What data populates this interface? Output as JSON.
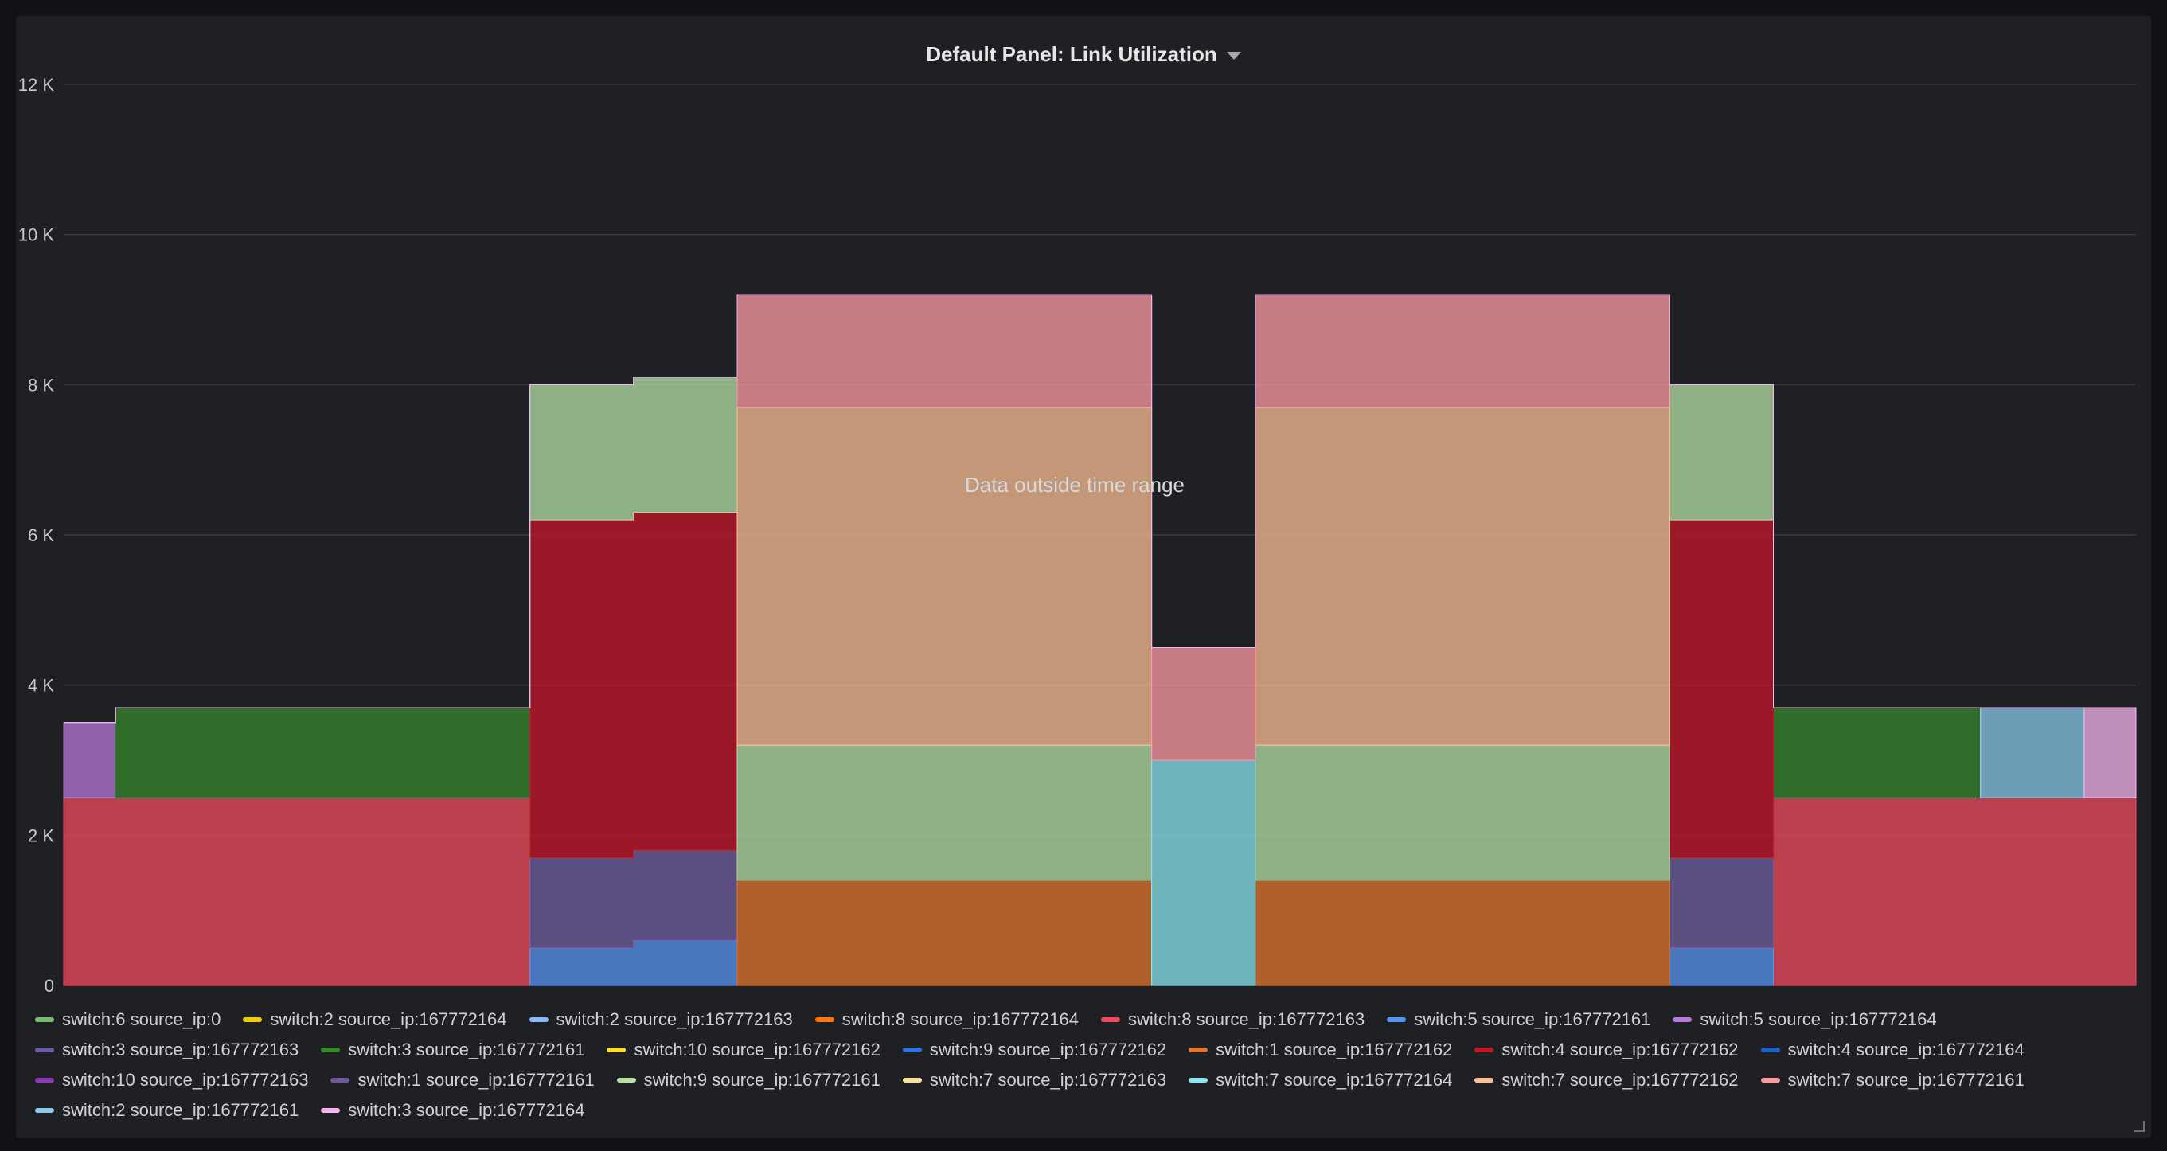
{
  "panel": {
    "title": "Default Panel: Link Utilization",
    "caret_icon": "chevron-down-icon"
  },
  "chart_data": {
    "type": "area",
    "stacked": true,
    "title": "Default Panel: Link Utilization",
    "xlabel": "",
    "ylabel": "",
    "ylim": [
      0,
      12000
    ],
    "y_ticks": [
      0,
      2000,
      4000,
      6000,
      8000,
      10000,
      12000
    ],
    "y_tick_labels": [
      "0",
      "2 K",
      "4 K",
      "6 K",
      "8 K",
      "10 K",
      "12 K"
    ],
    "grid": true,
    "legend_position": "bottom",
    "annotation": "Data outside time range",
    "x": [
      0,
      1,
      2,
      3,
      4,
      5,
      6,
      7,
      8,
      9,
      10,
      11,
      12,
      13,
      14,
      15,
      16,
      17,
      18,
      19,
      20
    ],
    "series": [
      {
        "name": "switch:6 source_ip:0",
        "color": "#73bf69",
        "values": [
          0,
          0,
          0,
          0,
          0,
          0,
          0,
          0,
          0,
          0,
          0,
          0,
          0,
          0,
          0,
          0,
          0,
          0,
          0,
          0,
          0
        ]
      },
      {
        "name": "switch:2 source_ip:167772164",
        "color": "#f2cc0c",
        "values": [
          0,
          0,
          0,
          0,
          0,
          0,
          0,
          0,
          0,
          0,
          0,
          0,
          0,
          0,
          0,
          0,
          0,
          0,
          0,
          0,
          0
        ]
      },
      {
        "name": "switch:2 source_ip:167772163",
        "color": "#8ab8ff",
        "values": [
          0,
          0,
          0,
          0,
          0,
          0,
          0,
          0,
          0,
          0,
          0,
          0,
          0,
          0,
          0,
          0,
          0,
          0,
          0,
          0,
          0
        ]
      },
      {
        "name": "switch:8 source_ip:167772164",
        "color": "#ff780a",
        "values": [
          0,
          0,
          0,
          0,
          0,
          0,
          0,
          0,
          0,
          0,
          0,
          0,
          0,
          0,
          0,
          0,
          0,
          0,
          0,
          0,
          0
        ]
      },
      {
        "name": "switch:8 source_ip:167772163",
        "color": "#f2495c",
        "values": [
          2500,
          2500,
          2500,
          2500,
          2500,
          0,
          0,
          0,
          0,
          0,
          0,
          0,
          0,
          0,
          0,
          0,
          0,
          2500,
          2500,
          2500,
          2500
        ]
      },
      {
        "name": "switch:5 source_ip:167772161",
        "color": "#5794f2",
        "values": [
          0,
          0,
          0,
          0,
          0,
          500,
          600,
          0,
          0,
          0,
          0,
          0,
          0,
          0,
          0,
          0,
          500,
          0,
          0,
          0,
          0
        ]
      },
      {
        "name": "switch:5 source_ip:167772164",
        "color": "#b877d9",
        "values": [
          1000,
          0,
          0,
          0,
          0,
          0,
          0,
          0,
          0,
          0,
          0,
          0,
          0,
          0,
          0,
          0,
          0,
          0,
          0,
          0,
          0
        ]
      },
      {
        "name": "switch:3 source_ip:167772163",
        "color": "#705da0",
        "values": [
          0,
          0,
          0,
          0,
          0,
          1200,
          1200,
          0,
          0,
          0,
          0,
          0,
          0,
          0,
          0,
          0,
          1200,
          0,
          0,
          0,
          0
        ]
      },
      {
        "name": "switch:3 source_ip:167772161",
        "color": "#37872d",
        "values": [
          0,
          1200,
          1200,
          1200,
          1200,
          0,
          0,
          0,
          0,
          0,
          0,
          0,
          0,
          0,
          0,
          0,
          0,
          1200,
          1200,
          0,
          0
        ]
      },
      {
        "name": "switch:10 source_ip:167772162",
        "color": "#fade2a",
        "values": [
          0,
          0,
          0,
          0,
          0,
          0,
          0,
          0,
          0,
          0,
          0,
          0,
          0,
          0,
          0,
          0,
          0,
          0,
          0,
          0,
          0
        ]
      },
      {
        "name": "switch:9 source_ip:167772162",
        "color": "#3274d9",
        "values": [
          0,
          0,
          0,
          0,
          0,
          0,
          0,
          0,
          0,
          0,
          0,
          0,
          0,
          0,
          0,
          0,
          0,
          0,
          0,
          0,
          0
        ]
      },
      {
        "name": "switch:1 source_ip:167772162",
        "color": "#e0752d",
        "values": [
          0,
          0,
          0,
          0,
          0,
          0,
          0,
          1400,
          1400,
          1400,
          1400,
          0,
          1400,
          1400,
          1400,
          1400,
          0,
          0,
          0,
          0,
          0
        ]
      },
      {
        "name": "switch:4 source_ip:167772162",
        "color": "#c4162a",
        "values": [
          0,
          0,
          0,
          0,
          0,
          4500,
          4500,
          0,
          0,
          0,
          0,
          0,
          0,
          0,
          0,
          0,
          4500,
          0,
          0,
          0,
          0
        ]
      },
      {
        "name": "switch:4 source_ip:167772164",
        "color": "#1f60c4",
        "values": [
          0,
          0,
          0,
          0,
          0,
          0,
          0,
          0,
          0,
          0,
          0,
          0,
          0,
          0,
          0,
          0,
          0,
          0,
          0,
          0,
          0
        ]
      },
      {
        "name": "switch:10 source_ip:167772163",
        "color": "#8f3bb8",
        "values": [
          0,
          0,
          0,
          0,
          0,
          0,
          0,
          0,
          0,
          0,
          0,
          0,
          0,
          0,
          0,
          0,
          0,
          0,
          0,
          0,
          0
        ]
      },
      {
        "name": "switch:1 source_ip:167772161",
        "color": "#6e5a9a",
        "values": [
          0,
          0,
          0,
          0,
          0,
          0,
          0,
          0,
          0,
          0,
          0,
          0,
          0,
          0,
          0,
          0,
          0,
          0,
          0,
          0,
          0
        ]
      },
      {
        "name": "switch:9 source_ip:167772161",
        "color": "#b6dfa6",
        "values": [
          0,
          0,
          0,
          0,
          0,
          1800,
          1800,
          1800,
          1800,
          1800,
          1800,
          0,
          1800,
          1800,
          1800,
          1800,
          1800,
          0,
          0,
          0,
          0
        ]
      },
      {
        "name": "switch:7 source_ip:167772163",
        "color": "#fce2a0",
        "values": [
          0,
          0,
          0,
          0,
          0,
          0,
          0,
          0,
          0,
          0,
          0,
          0,
          0,
          0,
          0,
          0,
          0,
          0,
          0,
          0,
          0
        ]
      },
      {
        "name": "switch:7 source_ip:167772164",
        "color": "#8ae6f0",
        "values": [
          0,
          0,
          0,
          0,
          0,
          0,
          0,
          0,
          0,
          0,
          0,
          3000,
          0,
          0,
          0,
          0,
          0,
          0,
          0,
          0,
          0
        ]
      },
      {
        "name": "switch:7 source_ip:167772162",
        "color": "#fcbf96",
        "values": [
          0,
          0,
          0,
          0,
          0,
          0,
          0,
          4500,
          4500,
          4500,
          4500,
          0,
          4500,
          4500,
          4500,
          4500,
          0,
          0,
          0,
          0,
          0
        ]
      },
      {
        "name": "switch:7 source_ip:167772161",
        "color": "#ff9aa5",
        "values": [
          0,
          0,
          0,
          0,
          0,
          0,
          0,
          1500,
          1500,
          1500,
          1500,
          1500,
          1500,
          1500,
          1500,
          1500,
          0,
          0,
          0,
          0,
          0
        ]
      },
      {
        "name": "switch:2 source_ip:167772161",
        "color": "#8ac7e8",
        "values": [
          0,
          0,
          0,
          0,
          0,
          0,
          0,
          0,
          0,
          0,
          0,
          0,
          0,
          0,
          0,
          0,
          0,
          0,
          0,
          1200,
          0
        ]
      },
      {
        "name": "switch:3 source_ip:167772164",
        "color": "#f7b5ee",
        "values": [
          0,
          0,
          0,
          0,
          0,
          0,
          0,
          0,
          0,
          0,
          0,
          0,
          0,
          0,
          0,
          0,
          0,
          0,
          0,
          0,
          1200
        ]
      }
    ]
  }
}
